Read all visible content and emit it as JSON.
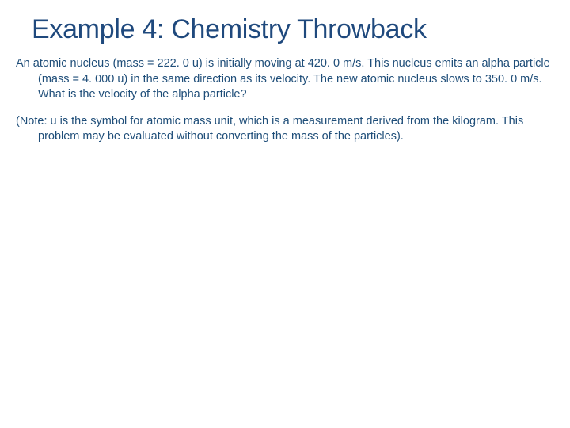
{
  "slide": {
    "title": "Example 4: Chemistry Throwback",
    "paragraph1": "An atomic nucleus (mass = 222. 0 u) is initially moving at 420. 0 m/s. This nucleus emits an alpha particle (mass = 4. 000 u) in the same direction as its velocity. The new atomic nucleus slows to 350. 0 m/s. What is the velocity of the alpha particle?",
    "paragraph2": "(Note: u is the symbol for atomic mass unit, which is a measurement derived from the kilogram. This problem may be evaluated without converting the mass of the particles).",
    "colors": {
      "title_color": "#1f497d",
      "body_color": "#1f4e79",
      "background": "#ffffff"
    },
    "typography": {
      "title_fontsize": 34,
      "body_fontsize": 14.5,
      "font_family": "Arial"
    }
  }
}
